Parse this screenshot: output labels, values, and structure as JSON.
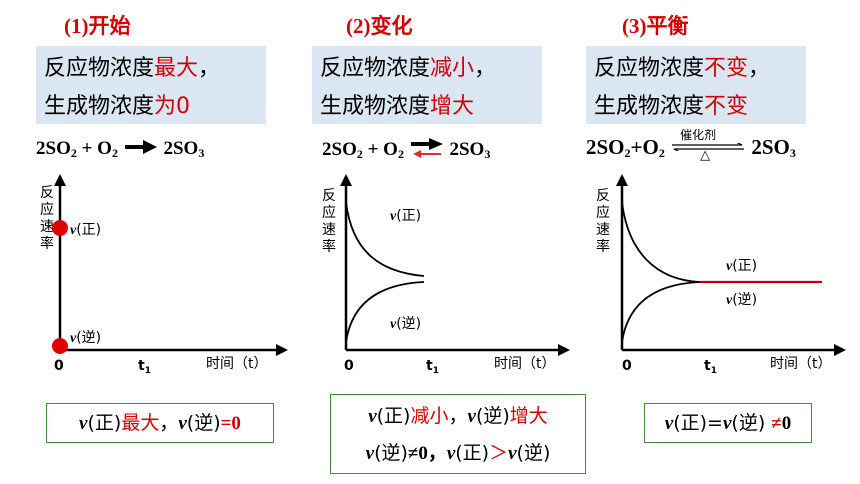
{
  "panels": [
    {
      "title_num": "(1)",
      "title_text": "开始",
      "desc_line1_a": "反应物浓度",
      "desc_line1_b": "最大",
      "desc_line1_c": "，",
      "desc_line2_a": "生成物浓度",
      "desc_line2_b": "为0",
      "equation": {
        "reactant1": "2SO",
        "sub1": "2",
        "plus": " + O",
        "sub2": "2",
        "product": "2SO",
        "sub3": "3"
      },
      "graph": {
        "ylabel": [
          "反",
          "应",
          "速",
          "率"
        ],
        "xlabel": "时间（t）",
        "origin": "0",
        "t1": "t",
        "t1_sub": "1",
        "forward_label": "v(正)",
        "reverse_label": "v(逆)"
      },
      "summary": {
        "a": "v",
        "b": "(正)",
        "c": "最大",
        "d": "，",
        "e": "v",
        "f": "(逆)",
        "g": "=0"
      }
    },
    {
      "title_num": "(2)",
      "title_text": "变化",
      "desc_line1_a": "反应物浓度",
      "desc_line1_b": "减小",
      "desc_line1_c": "，",
      "desc_line2_a": "生成物浓度",
      "desc_line2_b": "增大",
      "equation": {
        "reactant1": "2SO",
        "sub1": "2",
        "plus": " + O",
        "sub2": "2",
        "product": "2SO",
        "sub3": "3"
      },
      "graph": {
        "ylabel": [
          "反",
          "应",
          "速",
          "率"
        ],
        "xlabel": "时间（t）",
        "origin": "0",
        "t1": "t",
        "t1_sub": "1",
        "forward_label": "v(正)",
        "reverse_label": "v(逆)"
      },
      "summary": {
        "line1": {
          "a": "v",
          "b": "(正)",
          "c": "减小",
          "d": "，",
          "e": "v",
          "f": "(逆)",
          "g": "增大"
        },
        "line2": {
          "a": "v",
          "b": "(逆)",
          "c": "≠0，",
          "d": "v",
          "e": "(正)",
          "f": "＞",
          "g": "v",
          "h": "(逆)"
        }
      }
    },
    {
      "title_num": "(3)",
      "title_text": "平衡",
      "desc_line1_a": "反应物浓度",
      "desc_line1_b": "不变",
      "desc_line1_c": "，",
      "desc_line2_a": "生成物浓度",
      "desc_line2_b": "不变",
      "equation": {
        "reactant": "2SO",
        "sub1": "2",
        "plus": "+O",
        "sub2": "2",
        "catalyst": "催化剂",
        "heat": "△",
        "product": "2SO",
        "sub3": "3"
      },
      "graph": {
        "ylabel": [
          "反",
          "应",
          "速",
          "率"
        ],
        "xlabel": "时间（t）",
        "origin": "0",
        "t1": "t",
        "t1_sub": "1",
        "forward_label": "v(正)",
        "reverse_label": "v(逆)"
      },
      "summary": {
        "a": "v",
        "b": "(正)=",
        "c": "v",
        "d": "(逆) ",
        "e": "≠",
        "f": "0"
      }
    }
  ],
  "colors": {
    "red": "#d40000",
    "highlight_bg": "#dbe6f3",
    "summary_border": "#3f8c3f"
  }
}
